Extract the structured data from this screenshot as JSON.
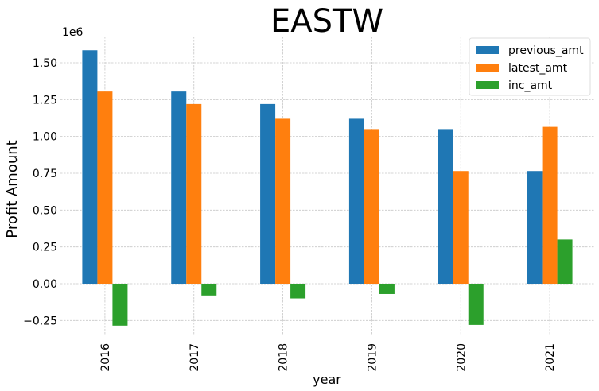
{
  "chart_data": {
    "type": "bar",
    "title": "EASTW",
    "xlabel": "year",
    "ylabel": "Profit Amount",
    "y_offset_label": "1e6",
    "categories": [
      "2016",
      "2017",
      "2018",
      "2019",
      "2020",
      "2021"
    ],
    "series": [
      {
        "name": "previous_amt",
        "color": "#1f77b4",
        "values": [
          1.585,
          1.305,
          1.22,
          1.12,
          1.05,
          0.765
        ]
      },
      {
        "name": "latest_amt",
        "color": "#ff7f0e",
        "values": [
          1.305,
          1.22,
          1.12,
          1.05,
          0.765,
          1.065
        ]
      },
      {
        "name": "inc_amt",
        "color": "#2ca02c",
        "values": [
          -0.285,
          -0.08,
          -0.1,
          -0.07,
          -0.28,
          0.3
        ]
      }
    ],
    "yticks": [
      -0.25,
      0.0,
      0.25,
      0.5,
      0.75,
      1.0,
      1.25,
      1.5
    ],
    "ytick_labels": [
      "−0.25",
      "0.00",
      "0.25",
      "0.50",
      "0.75",
      "1.00",
      "1.25",
      "1.50"
    ],
    "ylim": [
      -0.35,
      1.68
    ],
    "grid": true,
    "legend_position": "top-right"
  }
}
